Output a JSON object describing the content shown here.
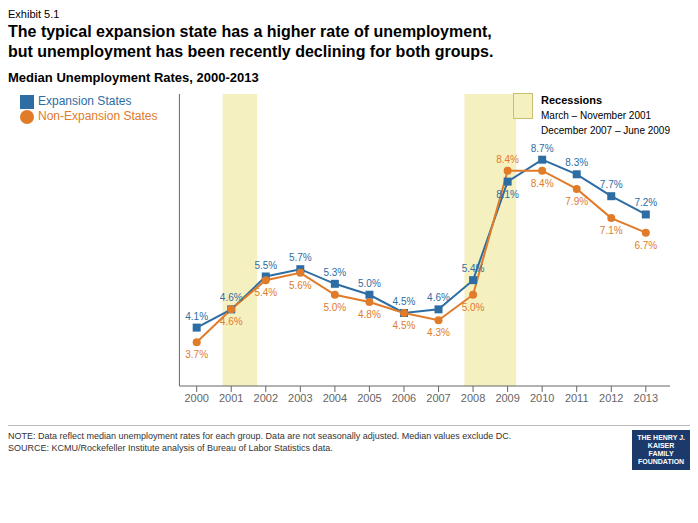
{
  "chart_data": {
    "type": "line",
    "title": "The typical expansion state has a higher rate of unemployment,\nbut unemployment has been recently declining for both groups.",
    "subtitle": "Median Unemployment Rates, 2000-2013",
    "annotations": [
      "Exhibit 5.1",
      "NOTE: Data reflect median unemployment rates for each group. Data are not seasonally adjusted. Median values exclude DC.\nSOURCE: KCMU/Rockefeller Institute analysis of Bureau of Labor Statistics data.",
      "THE HENRY J.\nKAISER\nFAMILY\nFOUNDATION"
    ],
    "x": [
      2000,
      2001,
      2002,
      2003,
      2004,
      2005,
      2006,
      2007,
      2008,
      2009,
      2010,
      2011,
      2012,
      2013
    ],
    "xlim": [
      1999.5,
      2013.7
    ],
    "xticks": [
      2000,
      2001,
      2002,
      2003,
      2004,
      2005,
      2006,
      2007,
      2008,
      2009,
      2010,
      2011,
      2012,
      2013
    ],
    "ylim": [
      2.5,
      10.5
    ],
    "tick_labels": "x",
    "grid": false,
    "legend": "upper left",
    "data_labels": true,
    "series": [
      {
        "name": "Expansion States",
        "color": "#2E6DA4",
        "marker": "square",
        "values": [
          4.1,
          4.6,
          5.5,
          5.7,
          5.3,
          5.0,
          4.5,
          4.6,
          5.4,
          8.1,
          8.7,
          8.3,
          7.7,
          7.2
        ],
        "value_labels": [
          "4.1%",
          "4.6%",
          "5.5%",
          "5.7%",
          "5.3%",
          "5.0%",
          "4.5%",
          "4.6%",
          "5.4%",
          "8.1%",
          "8.7%",
          "8.3%",
          "7.7%",
          "7.2%"
        ]
      },
      {
        "name": "Non-Expansion States",
        "color": "#E07B2A",
        "marker": "circle",
        "values": [
          3.7,
          4.6,
          5.4,
          5.6,
          5.0,
          4.8,
          4.5,
          4.3,
          5.0,
          8.4,
          8.4,
          7.9,
          7.1,
          6.7
        ],
        "value_labels": [
          "3.7%",
          "4.6%",
          "5.4%",
          "5.6%",
          "5.0%",
          "4.8%",
          "4.5%",
          "4.3%",
          "5.0%",
          "8.4%",
          "8.4%",
          "7.9%",
          "7.1%",
          "6.7%"
        ]
      }
    ],
    "shaded_spans": {
      "title": "Recessions",
      "color": "#F5F0C0",
      "edge_color": "#C8C070",
      "spans": [
        {
          "start": 2000.75,
          "end": 2001.75,
          "label": "March – November 2001"
        },
        {
          "start": 2007.75,
          "end": 2009.25,
          "label": "December 2007 – June 2009"
        }
      ]
    }
  }
}
